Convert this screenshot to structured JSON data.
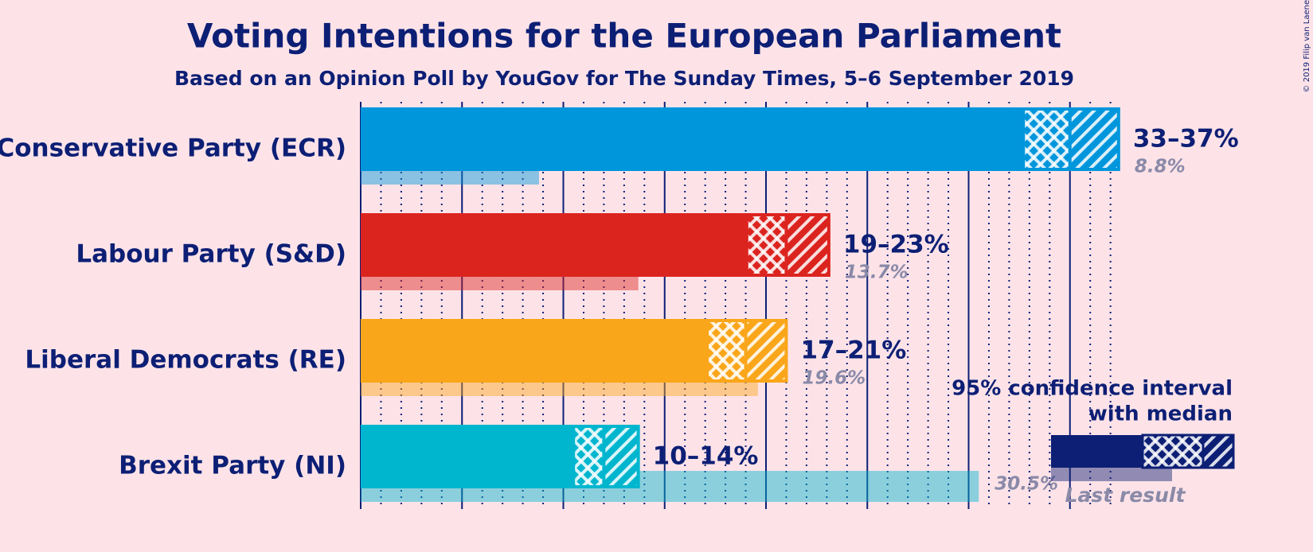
{
  "chart_data": {
    "type": "interval_bar",
    "title": "Voting Intentions for the European Parliament",
    "subtitle": "Based on an Opinion Poll by YouGov for The Sunday Times, 5–6 September 2019",
    "credit": "© 2019 Filip van Laenen",
    "categories": [
      "Conservative Party (ECR)",
      "Labour Party (S&D)",
      "Liberal Democrats (RE)",
      "Brexit Party (NI)"
    ],
    "colors": [
      "#0096dc",
      "#dc241f",
      "#faa61a",
      "#00b6cf"
    ],
    "low": [
      32.7,
      19.05,
      17.1,
      10.5
    ],
    "median": [
      35,
      21,
      19,
      12
    ],
    "high": [
      37.4,
      23.1,
      21,
      13.7
    ],
    "interval_labels": [
      "33–37%",
      "19–23%",
      "17–21%",
      "10–14%"
    ],
    "last_result": [
      8.8,
      13.7,
      19.6,
      30.5
    ],
    "last_result_labels": [
      "8.8%",
      "13.7%",
      "19.6%",
      "30.5%"
    ],
    "xlim": [
      0,
      40
    ],
    "xticks": [
      0,
      5,
      10,
      15,
      20,
      25,
      30,
      35
    ],
    "minor_xticks": [
      1,
      2,
      3,
      4,
      6,
      7,
      8,
      9,
      11,
      12,
      13,
      14,
      16,
      17,
      18,
      19,
      21,
      22,
      23,
      24,
      26,
      27,
      28,
      29,
      31,
      32,
      33,
      34,
      36,
      37
    ],
    "legend": {
      "title": "95% confidence interval",
      "subtitle": "with median",
      "last_result": "Last result"
    }
  }
}
